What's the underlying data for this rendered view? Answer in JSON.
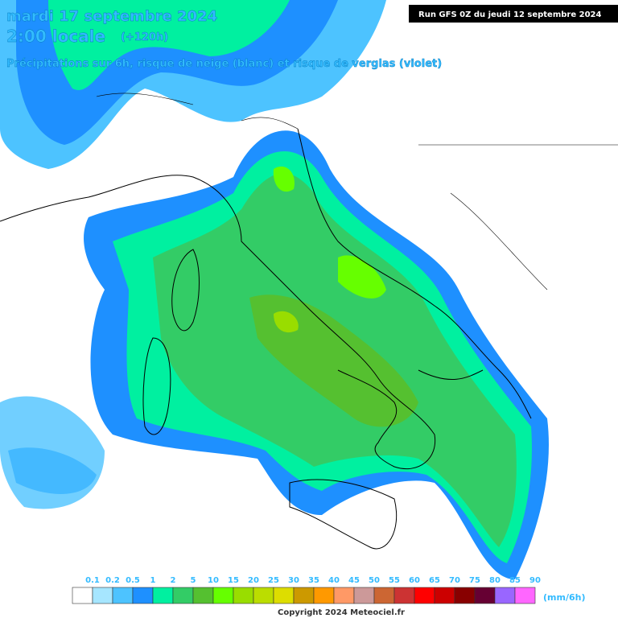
{
  "header": {
    "title": "mardi 17 septembre 2024",
    "time": "2:00 locale",
    "lead": "(+120h)",
    "subtitle": "Précipitations sur 6h, risque de neige (blanc) et risque de verglas (violet)",
    "run": "Run GFS 0Z du jeudi 12 septembre 2024"
  },
  "legend": {
    "unit": "(mm/6h)",
    "items": [
      {
        "value": 0.1,
        "color": "#ffffff"
      },
      {
        "value": 0.2,
        "color": "#a6e6ff"
      },
      {
        "value": 0.5,
        "color": "#4dc3ff"
      },
      {
        "value": 1,
        "color": "#1e90ff"
      },
      {
        "value": 2,
        "color": "#00f0a0"
      },
      {
        "value": 5,
        "color": "#33cc66"
      },
      {
        "value": 10,
        "color": "#55c030"
      },
      {
        "value": 15,
        "color": "#66ff00"
      },
      {
        "value": 20,
        "color": "#99dd00"
      },
      {
        "value": 25,
        "color": "#bbdd00"
      },
      {
        "value": 30,
        "color": "#dddd00"
      },
      {
        "value": 35,
        "color": "#cc9900"
      },
      {
        "value": 40,
        "color": "#ff9900"
      },
      {
        "value": 45,
        "color": "#ff9966"
      },
      {
        "value": 50,
        "color": "#cc9999"
      },
      {
        "value": 55,
        "color": "#cc6633"
      },
      {
        "value": 60,
        "color": "#cc3333"
      },
      {
        "value": 65,
        "color": "#ff0000"
      },
      {
        "value": 70,
        "color": "#cc0000"
      },
      {
        "value": 75,
        "color": "#880000"
      },
      {
        "value": 80,
        "color": "#660033"
      },
      {
        "value": 85,
        "color": "#9966ff"
      },
      {
        "value": 90,
        "color": "#ff66ff"
      }
    ]
  },
  "footer": {
    "copyright": "Copyright 2024 Meteociel.fr"
  }
}
